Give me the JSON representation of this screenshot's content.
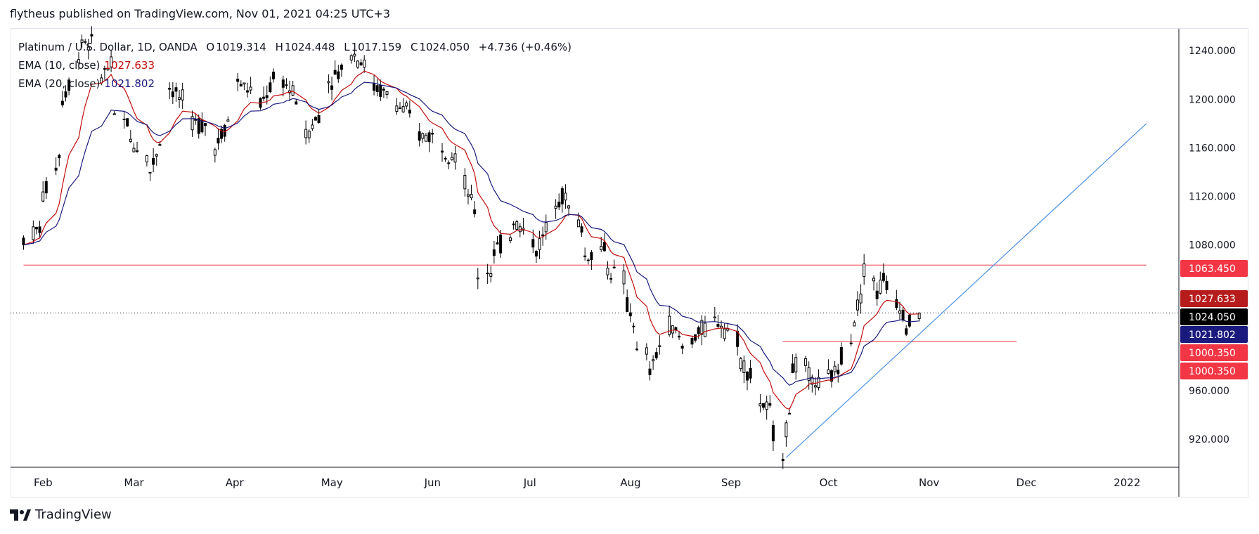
{
  "header": {
    "published": "flytheus published on TradingView.com, Nov 01, 2021 04:25 UTC+3"
  },
  "legend": {
    "symbol": "Platinum / U.S. Dollar, 1D, OANDA",
    "open_label": "O",
    "open": "1019.314",
    "high_label": "H",
    "high": "1024.448",
    "low_label": "L",
    "low": "1017.159",
    "close_label": "C",
    "close": "1024.050",
    "change": "+4.736 (+0.46%)",
    "ema10_label": "EMA (10, close)",
    "ema10_value": "1027.633",
    "ema20_label": "EMA (20, close)",
    "ema20_value": "1021.802"
  },
  "footer": {
    "brand": "TradingView"
  },
  "colors": {
    "up": "#ffffff",
    "down": "#000000",
    "wick": "#000000",
    "ema10": "#c20d0d",
    "ema20": "#1a1a7e",
    "hline": "#f23645",
    "trend": "#4a90e2"
  },
  "chart_data": {
    "type": "candlestick",
    "yaxis": {
      "ticks": [
        "1240.000",
        "1200.000",
        "1160.000",
        "1120.000",
        "1080.000",
        "960.000",
        "920.000"
      ],
      "ylim": [
        897,
        1258
      ]
    },
    "xaxis": {
      "ticks": [
        "Feb",
        "Mar",
        "Apr",
        "May",
        "Jun",
        "Jul",
        "Aug",
        "Sep",
        "Oct",
        "Nov",
        "Dec",
        "2022"
      ]
    },
    "price_labels": [
      "1063.450",
      "1027.633",
      "1024.050",
      "1021.802",
      "1000.350",
      "1000.350"
    ],
    "horizontal_levels": [
      {
        "value": 1063.45,
        "from": "2021-01-29",
        "to": "2022-01-10"
      },
      {
        "value": 1000.35,
        "from": "2021-09-20",
        "to": "2021-12-01"
      }
    ],
    "last_price": 1024.05,
    "trendline": {
      "from": [
        "2021-09-21",
        905
      ],
      "to": [
        "2022-01-10",
        1180
      ]
    },
    "ohlc_anchors": [
      [
        "2021-01-29",
        1080,
        1110,
        1050,
        1085
      ],
      [
        "2021-02-04",
        1095,
        1140,
        1080,
        1120
      ],
      [
        "2021-02-10",
        1160,
        1220,
        1150,
        1200
      ],
      [
        "2021-02-16",
        1240,
        1270,
        1215,
        1250
      ],
      [
        "2021-02-22",
        1240,
        1260,
        1200,
        1220
      ],
      [
        "2021-02-26",
        1230,
        1240,
        1170,
        1185
      ],
      [
        "2021-03-03",
        1180,
        1200,
        1150,
        1165
      ],
      [
        "2021-03-09",
        1150,
        1170,
        1110,
        1140
      ],
      [
        "2021-03-15",
        1190,
        1220,
        1180,
        1210
      ],
      [
        "2021-03-22",
        1190,
        1210,
        1165,
        1180
      ],
      [
        "2021-03-29",
        1180,
        1190,
        1145,
        1160
      ],
      [
        "2021-04-05",
        1200,
        1225,
        1190,
        1215
      ],
      [
        "2021-04-12",
        1200,
        1220,
        1185,
        1195
      ],
      [
        "2021-04-19",
        1230,
        1240,
        1205,
        1215
      ],
      [
        "2021-04-26",
        1190,
        1210,
        1160,
        1170
      ],
      [
        "2021-05-03",
        1200,
        1230,
        1190,
        1215
      ],
      [
        "2021-05-10",
        1230,
        1260,
        1220,
        1240
      ],
      [
        "2021-05-17",
        1220,
        1235,
        1200,
        1210
      ],
      [
        "2021-05-24",
        1200,
        1215,
        1185,
        1195
      ],
      [
        "2021-05-31",
        1180,
        1190,
        1160,
        1170
      ],
      [
        "2021-06-07",
        1170,
        1180,
        1150,
        1160
      ],
      [
        "2021-06-14",
        1150,
        1160,
        1120,
        1130
      ],
      [
        "2021-06-18",
        1100,
        1110,
        1050,
        1055
      ],
      [
        "2021-06-23",
        1060,
        1080,
        1040,
        1075
      ],
      [
        "2021-06-29",
        1090,
        1110,
        1080,
        1100
      ],
      [
        "2021-07-06",
        1080,
        1100,
        1060,
        1075
      ],
      [
        "2021-07-12",
        1110,
        1135,
        1095,
        1120
      ],
      [
        "2021-07-16",
        1120,
        1140,
        1100,
        1110
      ],
      [
        "2021-07-21",
        1090,
        1100,
        1060,
        1070
      ],
      [
        "2021-07-28",
        1080,
        1090,
        1050,
        1060
      ],
      [
        "2021-08-03",
        1050,
        1060,
        1020,
        1030
      ],
      [
        "2021-08-06",
        1010,
        1020,
        980,
        990
      ],
      [
        "2021-08-10",
        990,
        1000,
        965,
        975
      ],
      [
        "2021-08-16",
        1020,
        1030,
        1005,
        1015
      ],
      [
        "2021-08-20",
        1000,
        1015,
        985,
        995
      ],
      [
        "2021-08-26",
        1010,
        1020,
        995,
        1010
      ],
      [
        "2021-09-01",
        1020,
        1035,
        1005,
        1015
      ],
      [
        "2021-09-07",
        1000,
        1010,
        980,
        985
      ],
      [
        "2021-09-13",
        960,
        970,
        940,
        950
      ],
      [
        "2021-09-17",
        940,
        950,
        920,
        925
      ],
      [
        "2021-09-20",
        920,
        930,
        905,
        910
      ],
      [
        "2021-09-23",
        960,
        990,
        955,
        980
      ],
      [
        "2021-09-28",
        980,
        990,
        960,
        970
      ],
      [
        "2021-10-04",
        960,
        980,
        950,
        970
      ],
      [
        "2021-10-08",
        980,
        1000,
        970,
        990
      ],
      [
        "2021-10-12",
        1010,
        1030,
        1000,
        1020
      ],
      [
        "2021-10-15",
        1050,
        1070,
        1040,
        1060
      ],
      [
        "2021-10-19",
        1050,
        1070,
        1030,
        1040
      ],
      [
        "2021-10-22",
        1060,
        1080,
        1040,
        1045
      ],
      [
        "2021-10-25",
        1040,
        1065,
        1030,
        1035
      ],
      [
        "2021-10-28",
        1020,
        1025,
        1005,
        1015
      ],
      [
        "2021-11-01",
        1019.314,
        1024.448,
        1017.159,
        1024.05
      ]
    ]
  }
}
